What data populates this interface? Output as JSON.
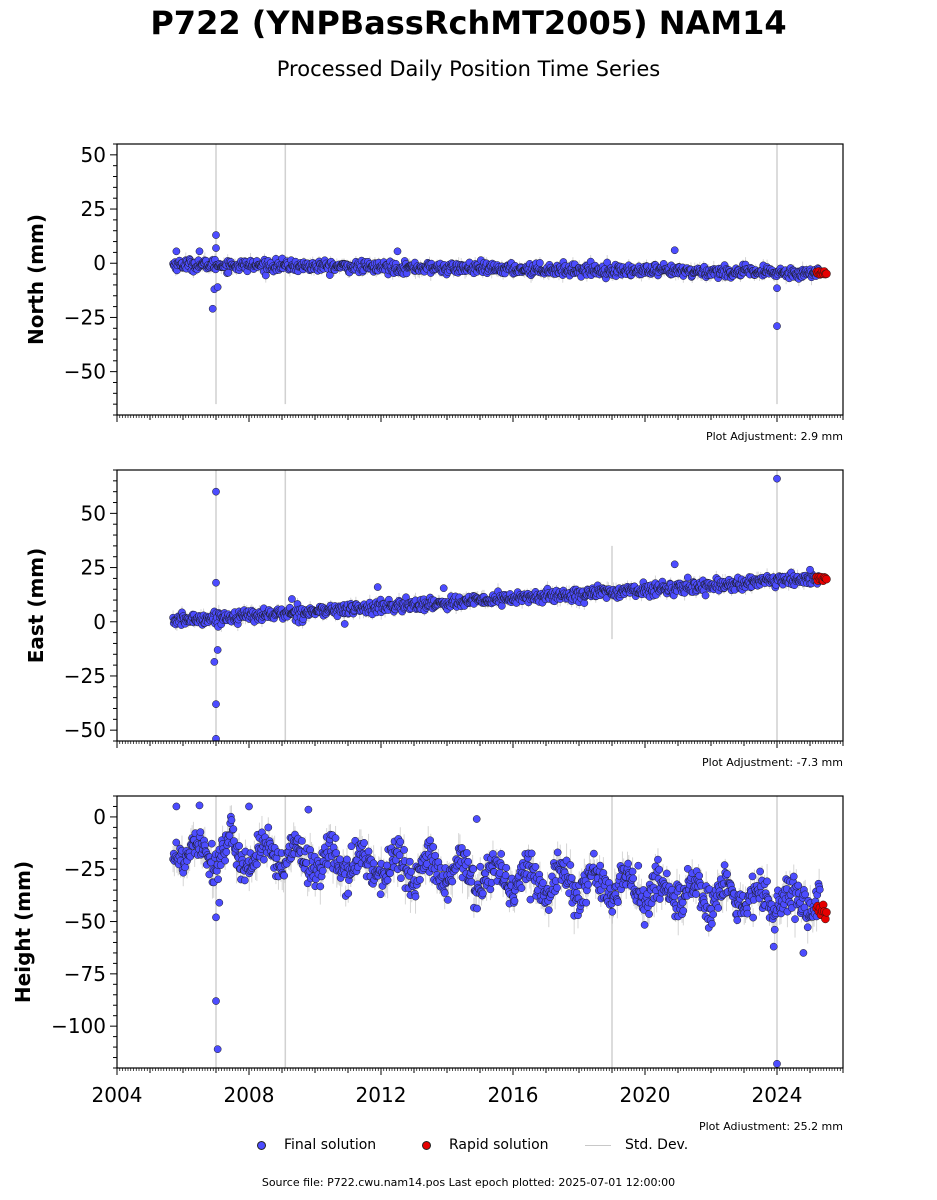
{
  "title": "P722 (YNPBassRchMT2005) NAM14",
  "subtitle": "Processed Daily Position Time Series",
  "legend": {
    "final": "Final solution",
    "rapid": "Rapid solution",
    "std": "Std. Dev."
  },
  "source_text": "Source file: P722.cwu.nam14.pos  Last epoch plotted: 2025-07-01 12:00:00",
  "colors": {
    "final": "#4c4cff",
    "rapid": "#e60000",
    "std": "#b4b4b4",
    "edge": "#1a1a1a"
  },
  "chart_data": [
    {
      "type": "scatter",
      "component": "north",
      "ylabel": "North (mm)",
      "xlim": [
        2004,
        2026
      ],
      "ylim": [
        -70,
        55
      ],
      "yticks": [
        50,
        25,
        0,
        -25,
        -50
      ],
      "adjustment": "Plot Adjustment: 2.9 mm",
      "trend": {
        "start": [
          2005.7,
          -0.5
        ],
        "end": [
          2025.3,
          -4.6
        ]
      },
      "scatter_sd": 1.3,
      "std_typical": 2.5,
      "outliers": [
        [
          2007.0,
          13
        ],
        [
          2007.0,
          7
        ],
        [
          2006.95,
          -12
        ],
        [
          2007.05,
          -11
        ],
        [
          2006.9,
          -21
        ],
        [
          2005.8,
          5.5
        ],
        [
          2006.5,
          5.5
        ],
        [
          2012.5,
          5.5
        ],
        [
          2020.9,
          6
        ],
        [
          2024.0,
          -11.5
        ],
        [
          2024.0,
          -29
        ]
      ],
      "std_spikes": [
        [
          2007.0,
          55,
          -65
        ],
        [
          2009.1,
          55,
          -65
        ],
        [
          2024.0,
          55,
          -65
        ]
      ],
      "rapid": {
        "x_range": [
          2025.2,
          2025.5
        ],
        "y": -4.5,
        "spread": 0.8
      }
    },
    {
      "type": "scatter",
      "component": "east",
      "ylabel": "East (mm)",
      "xlim": [
        2004,
        2026
      ],
      "ylim": [
        -55,
        70
      ],
      "yticks": [
        50,
        25,
        0,
        -25,
        -50
      ],
      "adjustment": "Plot Adjustment: -7.3 mm",
      "trend": {
        "start": [
          2005.7,
          0.5
        ],
        "end": [
          2025.3,
          20
        ]
      },
      "scatter_sd": 1.4,
      "std_typical": 2.5,
      "outliers": [
        [
          2007.0,
          60
        ],
        [
          2007.0,
          18
        ],
        [
          2006.95,
          -18.5
        ],
        [
          2007.05,
          -13
        ],
        [
          2007.0,
          -38
        ],
        [
          2007.0,
          -54
        ],
        [
          2009.3,
          10.5
        ],
        [
          2011.9,
          16
        ],
        [
          2013.9,
          15.5
        ],
        [
          2020.9,
          26.5
        ],
        [
          2024.0,
          66
        ],
        [
          2025.0,
          24
        ],
        [
          2010.9,
          -1
        ]
      ],
      "std_spikes": [
        [
          2007.0,
          70,
          -55
        ],
        [
          2009.1,
          70,
          -55
        ],
        [
          2019.0,
          35,
          -8
        ],
        [
          2024.0,
          70,
          -55
        ]
      ],
      "rapid": {
        "x_range": [
          2025.2,
          2025.5
        ],
        "y": 20,
        "spread": 1.2
      }
    },
    {
      "type": "scatter",
      "component": "height",
      "ylabel": "Height (mm)",
      "xlim": [
        2004,
        2026
      ],
      "ylim": [
        -120,
        10
      ],
      "yticks": [
        0,
        -25,
        -50,
        -75,
        -100
      ],
      "xticks": [
        2004,
        2008,
        2012,
        2016,
        2020,
        2024
      ],
      "adjustment": "Plot Adjustment: 25.2 mm",
      "trend": {
        "start": [
          2005.7,
          -15
        ],
        "end": [
          2025.3,
          -42
        ]
      },
      "seasonal_amplitude": 6,
      "scatter_sd": 4.5,
      "std_typical": 6,
      "outliers": [
        [
          2005.8,
          5
        ],
        [
          2006.5,
          5.5
        ],
        [
          2007.0,
          -48
        ],
        [
          2007.0,
          -88
        ],
        [
          2007.05,
          -111
        ],
        [
          2008.0,
          5
        ],
        [
          2009.8,
          3.5
        ],
        [
          2014.9,
          -1
        ],
        [
          2024.0,
          -118
        ],
        [
          2023.9,
          -62
        ],
        [
          2024.8,
          -65
        ],
        [
          2007.1,
          -41
        ]
      ],
      "std_spikes": [
        [
          2007.0,
          10,
          -120
        ],
        [
          2009.1,
          10,
          -120
        ],
        [
          2019.0,
          10,
          -120
        ],
        [
          2024.0,
          10,
          -120
        ]
      ],
      "rapid": {
        "x_range": [
          2025.2,
          2025.5
        ],
        "y": -45,
        "spread": 4
      }
    }
  ]
}
